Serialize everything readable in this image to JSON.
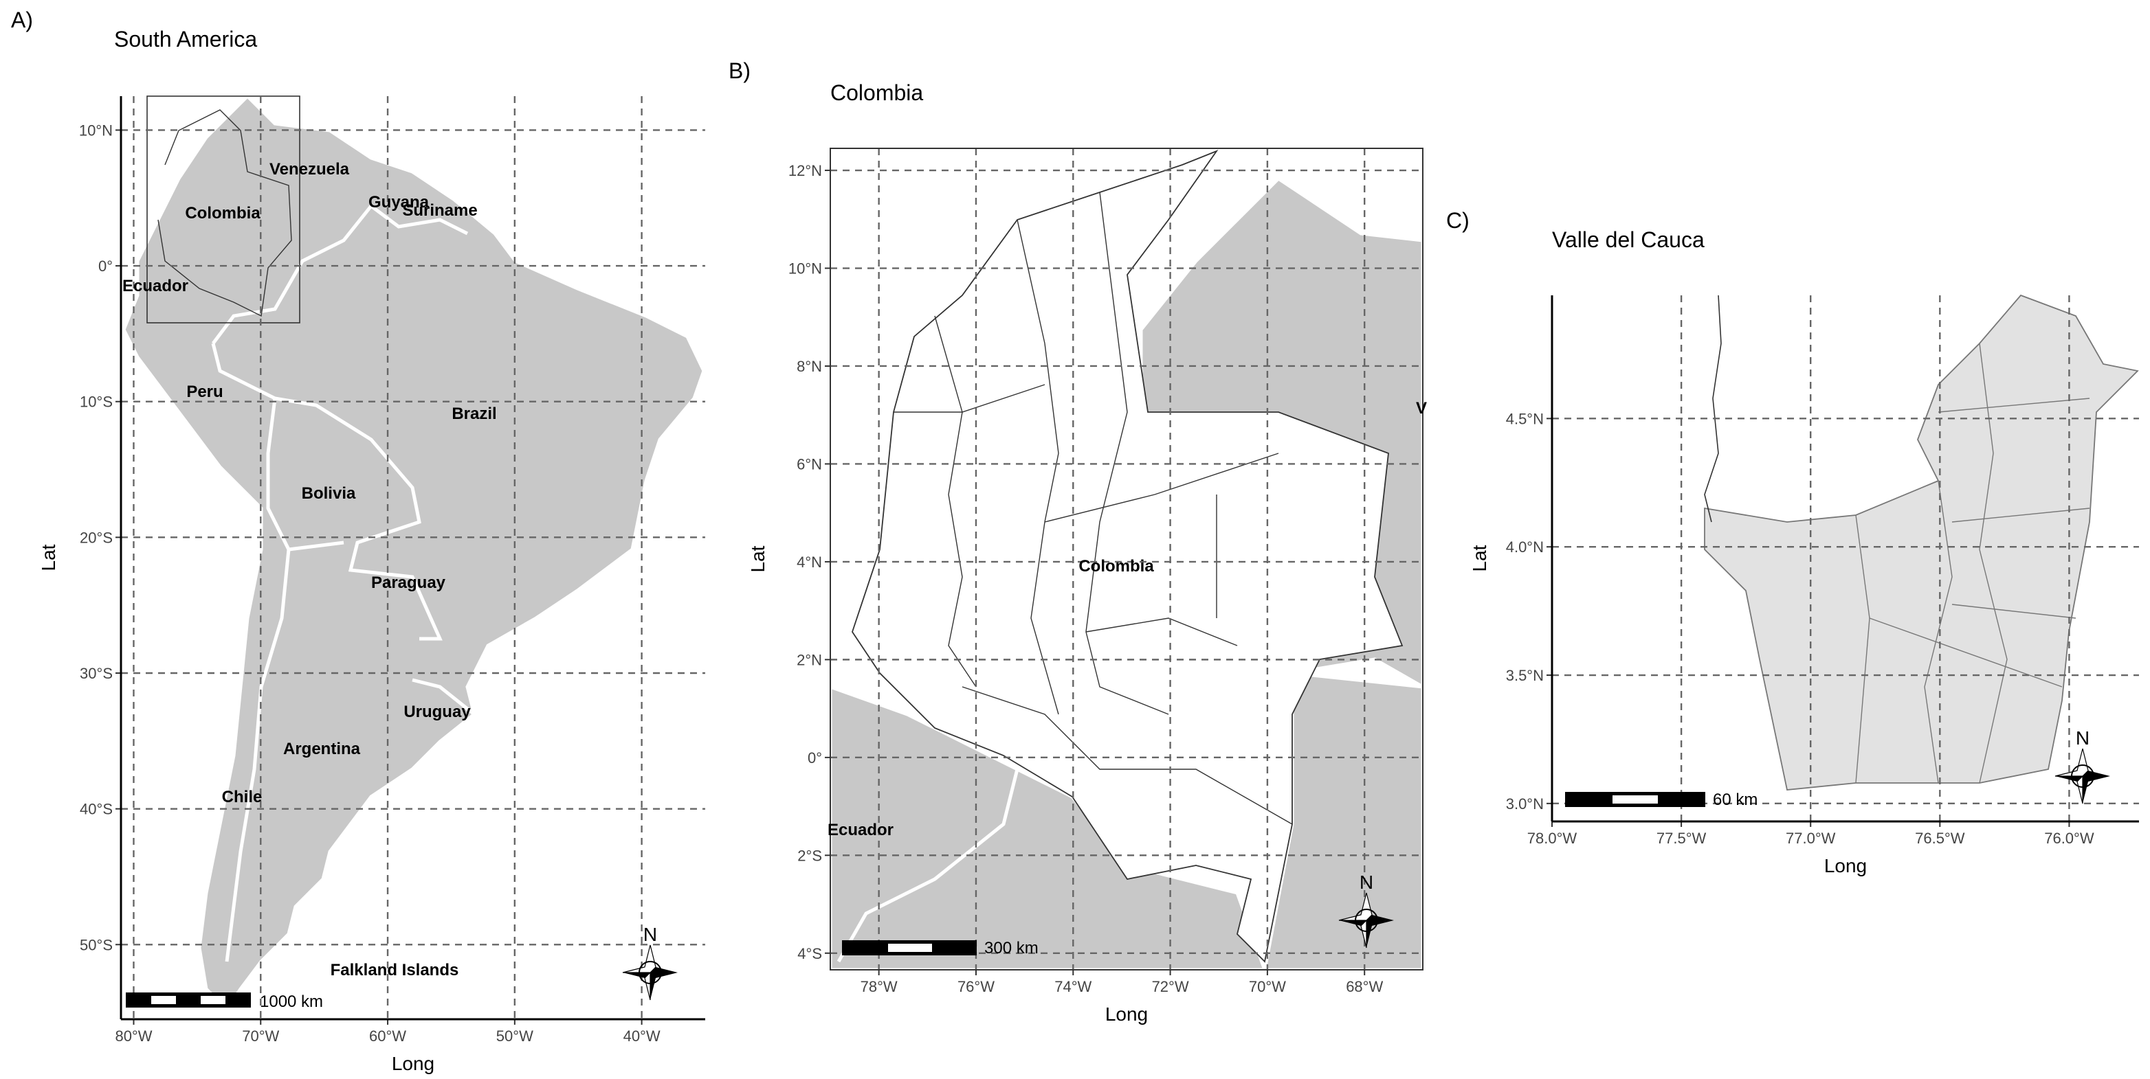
{
  "panels": [
    {
      "letter": "A)",
      "title": "South America",
      "xlabel": "Long",
      "ylabel": "Lat",
      "xlim": [
        -81,
        -35
      ],
      "ylim": [
        -55.5,
        12.5
      ],
      "xticks": [
        {
          "value": -80,
          "label": "80°W"
        },
        {
          "value": -70,
          "label": "70°W"
        },
        {
          "value": -60,
          "label": "60°W"
        },
        {
          "value": -50,
          "label": "50°W"
        },
        {
          "value": -40,
          "label": "40°W"
        }
      ],
      "yticks": [
        {
          "value": 10,
          "label": "10°N"
        },
        {
          "value": 0,
          "label": "0°"
        },
        {
          "value": -10,
          "label": "10°S"
        },
        {
          "value": -20,
          "label": "20°S"
        },
        {
          "value": -30,
          "label": "30°S"
        },
        {
          "value": -40,
          "label": "40°S"
        },
        {
          "value": -50,
          "label": "50°S"
        }
      ],
      "places": [
        "Venezuela",
        "Guyana",
        "Suriname",
        "Colombia",
        "Ecuador",
        "Peru",
        "Brazil",
        "Bolivia",
        "Paraguay",
        "Uruguay",
        "Argentina",
        "Chile",
        "Falkland Islands"
      ],
      "scale_label": "1000 km",
      "north": "N"
    },
    {
      "letter": "B)",
      "title": "Colombia",
      "xlabel": "Long",
      "ylabel": "Lat",
      "xlim": [
        -79.0,
        -66.8
      ],
      "ylim": [
        -4.34,
        12.45
      ],
      "xticks": [
        {
          "value": -78,
          "label": "78°W"
        },
        {
          "value": -76,
          "label": "76°W"
        },
        {
          "value": -74,
          "label": "74°W"
        },
        {
          "value": -72,
          "label": "72°W"
        },
        {
          "value": -70,
          "label": "70°W"
        },
        {
          "value": -68,
          "label": "68°W"
        }
      ],
      "yticks": [
        {
          "value": 12,
          "label": "12°N"
        },
        {
          "value": 10,
          "label": "10°N"
        },
        {
          "value": 8,
          "label": "8°N"
        },
        {
          "value": 6,
          "label": "6°N"
        },
        {
          "value": 4,
          "label": "4°N"
        },
        {
          "value": 2,
          "label": "2°N"
        },
        {
          "value": 0,
          "label": "0°"
        },
        {
          "value": -2,
          "label": "2°S"
        },
        {
          "value": -4,
          "label": "4°S"
        }
      ],
      "places": [
        "Colombia",
        "Ecuador",
        "V"
      ],
      "scale_label": "300 km",
      "north": "N"
    },
    {
      "letter": "C)",
      "title": "Valle del Cauca",
      "xlabel": "Long",
      "ylabel": "Lat",
      "xlim": [
        -78.0,
        -75.73
      ],
      "ylim": [
        2.93,
        4.98
      ],
      "xticks": [
        {
          "value": -78.0,
          "label": "78.0°W"
        },
        {
          "value": -77.5,
          "label": "77.5°W"
        },
        {
          "value": -77.0,
          "label": "77.0°W"
        },
        {
          "value": -76.5,
          "label": "76.5°W"
        },
        {
          "value": -76.0,
          "label": "76.0°W"
        }
      ],
      "yticks": [
        {
          "value": 4.5,
          "label": "4.5°N"
        },
        {
          "value": 4.0,
          "label": "4.0°N"
        },
        {
          "value": 3.5,
          "label": "3.5°N"
        },
        {
          "value": 3.0,
          "label": "3.0°N"
        }
      ],
      "scale_label": "60 km",
      "north": "N"
    }
  ]
}
